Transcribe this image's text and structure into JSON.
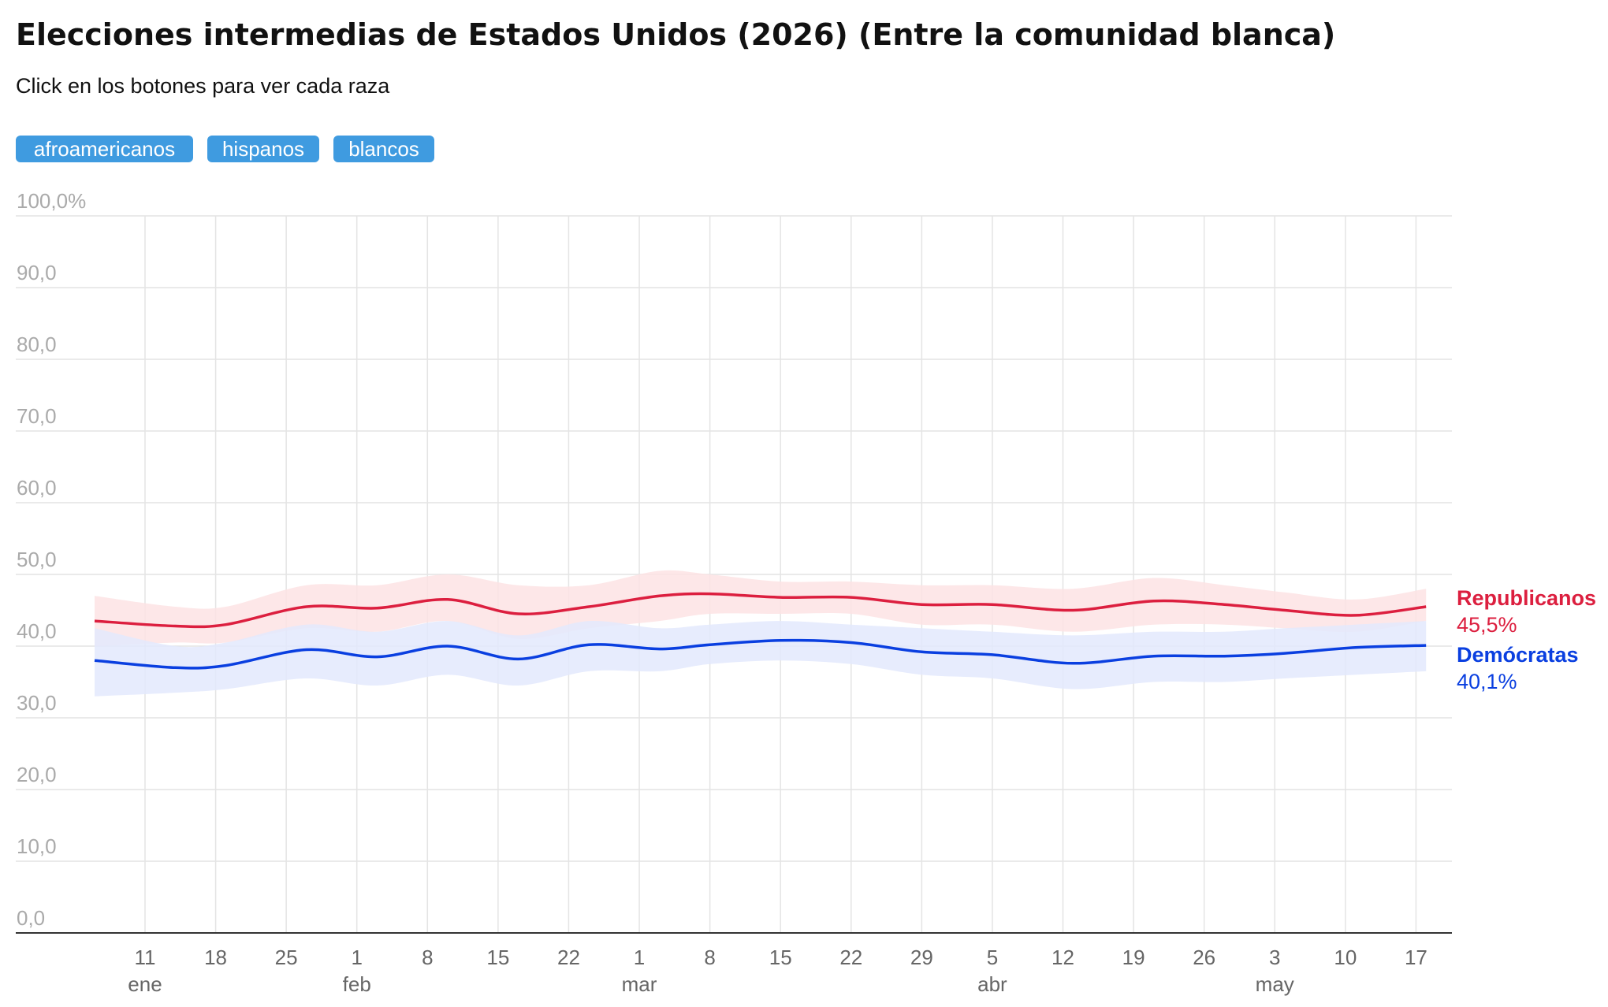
{
  "header": {
    "title": "Elecciones intermedias de Estados Unidos (2026) (Entre la comunidad blanca)",
    "subtitle": "Click en los botones para ver cada raza"
  },
  "buttons": {
    "afroamericanos": "afroamericanos",
    "hispanos": "hispanos",
    "blancos": "blancos"
  },
  "colors": {
    "republicanos": "#dc1f3f",
    "republicanos_band": "#fde3e4",
    "democratas": "#0a3fe0",
    "democratas_band": "#e3e9fd",
    "button": "#3f9be0",
    "grid": "#e4e4e4",
    "axis_text": "#aaaaaa",
    "tick_text": "#666666"
  },
  "chart_data": {
    "type": "line",
    "ylim": [
      0,
      100
    ],
    "y_ticks": [
      {
        "value": 100,
        "label": "100,0%"
      },
      {
        "value": 90,
        "label": "90,0"
      },
      {
        "value": 80,
        "label": "80,0"
      },
      {
        "value": 70,
        "label": "70,0"
      },
      {
        "value": 60,
        "label": "60,0"
      },
      {
        "value": 50,
        "label": "50,0"
      },
      {
        "value": 40,
        "label": "40,0"
      },
      {
        "value": 30,
        "label": "30,0"
      },
      {
        "value": 20,
        "label": "20,0"
      },
      {
        "value": 10,
        "label": "10,0"
      },
      {
        "value": 0,
        "label": "0,0"
      }
    ],
    "xlim": [
      "2026-01-06",
      "2026-05-19"
    ],
    "x_ticks": [
      {
        "date": "2026-01-11",
        "label": "11"
      },
      {
        "date": "2026-01-18",
        "label": "18"
      },
      {
        "date": "2026-01-25",
        "label": "25"
      },
      {
        "date": "2026-02-01",
        "label": "1"
      },
      {
        "date": "2026-02-08",
        "label": "8"
      },
      {
        "date": "2026-02-15",
        "label": "15"
      },
      {
        "date": "2026-02-22",
        "label": "22"
      },
      {
        "date": "2026-03-01",
        "label": "1"
      },
      {
        "date": "2026-03-08",
        "label": "8"
      },
      {
        "date": "2026-03-15",
        "label": "15"
      },
      {
        "date": "2026-03-22",
        "label": "22"
      },
      {
        "date": "2026-03-29",
        "label": "29"
      },
      {
        "date": "2026-04-05",
        "label": "5"
      },
      {
        "date": "2026-04-12",
        "label": "12"
      },
      {
        "date": "2026-04-19",
        "label": "19"
      },
      {
        "date": "2026-04-26",
        "label": "26"
      },
      {
        "date": "2026-05-03",
        "label": "3"
      },
      {
        "date": "2026-05-10",
        "label": "10"
      },
      {
        "date": "2026-05-17",
        "label": "17"
      }
    ],
    "month_labels": [
      {
        "date": "2026-01-11",
        "label": "ene"
      },
      {
        "date": "2026-02-01",
        "label": "feb"
      },
      {
        "date": "2026-03-01",
        "label": "mar"
      },
      {
        "date": "2026-04-05",
        "label": "abr"
      },
      {
        "date": "2026-05-03",
        "label": "may"
      }
    ],
    "grid": true,
    "series": [
      {
        "name": "Republicanos",
        "end_label": "45,5%",
        "points": [
          {
            "x": "2026-01-06",
            "y": 43.5,
            "lo": 40.0,
            "hi": 47.0
          },
          {
            "x": "2026-01-14",
            "y": 42.8,
            "lo": 40.5,
            "hi": 45.5
          },
          {
            "x": "2026-01-19",
            "y": 43.0,
            "lo": 40.5,
            "hi": 45.5
          },
          {
            "x": "2026-01-27",
            "y": 45.5,
            "lo": 42.5,
            "hi": 48.5
          },
          {
            "x": "2026-02-03",
            "y": 45.3,
            "lo": 42.0,
            "hi": 48.5
          },
          {
            "x": "2026-02-10",
            "y": 46.5,
            "lo": 43.5,
            "hi": 50.0
          },
          {
            "x": "2026-02-17",
            "y": 44.5,
            "lo": 41.0,
            "hi": 48.5
          },
          {
            "x": "2026-02-24",
            "y": 45.5,
            "lo": 42.5,
            "hi": 48.5
          },
          {
            "x": "2026-03-03",
            "y": 47.0,
            "lo": 43.5,
            "hi": 50.5
          },
          {
            "x": "2026-03-08",
            "y": 47.3,
            "lo": 44.5,
            "hi": 50.0
          },
          {
            "x": "2026-03-15",
            "y": 46.8,
            "lo": 44.5,
            "hi": 49.0
          },
          {
            "x": "2026-03-22",
            "y": 46.8,
            "lo": 44.5,
            "hi": 49.0
          },
          {
            "x": "2026-03-29",
            "y": 45.8,
            "lo": 43.0,
            "hi": 48.5
          },
          {
            "x": "2026-04-05",
            "y": 45.8,
            "lo": 43.0,
            "hi": 48.5
          },
          {
            "x": "2026-04-13",
            "y": 45.0,
            "lo": 42.0,
            "hi": 48.0
          },
          {
            "x": "2026-04-21",
            "y": 46.3,
            "lo": 43.0,
            "hi": 49.5
          },
          {
            "x": "2026-04-28",
            "y": 45.8,
            "lo": 43.0,
            "hi": 48.5
          },
          {
            "x": "2026-05-04",
            "y": 45.0,
            "lo": 42.5,
            "hi": 47.5
          },
          {
            "x": "2026-05-11",
            "y": 44.3,
            "lo": 42.0,
            "hi": 46.5
          },
          {
            "x": "2026-05-18",
            "y": 45.5,
            "lo": 43.5,
            "hi": 48.0
          }
        ]
      },
      {
        "name": "Demócratas",
        "end_label": "40,1%",
        "points": [
          {
            "x": "2026-01-06",
            "y": 38.0,
            "lo": 33.0,
            "hi": 42.5
          },
          {
            "x": "2026-01-14",
            "y": 37.0,
            "lo": 33.5,
            "hi": 40.0
          },
          {
            "x": "2026-01-19",
            "y": 37.3,
            "lo": 34.0,
            "hi": 40.5
          },
          {
            "x": "2026-01-27",
            "y": 39.5,
            "lo": 35.5,
            "hi": 43.0
          },
          {
            "x": "2026-02-03",
            "y": 38.5,
            "lo": 34.5,
            "hi": 42.0
          },
          {
            "x": "2026-02-10",
            "y": 40.0,
            "lo": 36.0,
            "hi": 43.5
          },
          {
            "x": "2026-02-17",
            "y": 38.2,
            "lo": 34.5,
            "hi": 41.5
          },
          {
            "x": "2026-02-24",
            "y": 40.2,
            "lo": 36.5,
            "hi": 43.5
          },
          {
            "x": "2026-03-03",
            "y": 39.6,
            "lo": 36.5,
            "hi": 42.5
          },
          {
            "x": "2026-03-08",
            "y": 40.2,
            "lo": 37.5,
            "hi": 43.0
          },
          {
            "x": "2026-03-15",
            "y": 40.8,
            "lo": 38.0,
            "hi": 43.5
          },
          {
            "x": "2026-03-22",
            "y": 40.5,
            "lo": 37.5,
            "hi": 43.0
          },
          {
            "x": "2026-03-29",
            "y": 39.2,
            "lo": 36.0,
            "hi": 42.5
          },
          {
            "x": "2026-04-05",
            "y": 38.8,
            "lo": 35.5,
            "hi": 42.0
          },
          {
            "x": "2026-04-13",
            "y": 37.6,
            "lo": 34.0,
            "hi": 41.5
          },
          {
            "x": "2026-04-21",
            "y": 38.6,
            "lo": 35.0,
            "hi": 42.0
          },
          {
            "x": "2026-04-28",
            "y": 38.6,
            "lo": 35.0,
            "hi": 42.0
          },
          {
            "x": "2026-05-04",
            "y": 39.0,
            "lo": 35.5,
            "hi": 42.5
          },
          {
            "x": "2026-05-11",
            "y": 39.8,
            "lo": 36.0,
            "hi": 43.0
          },
          {
            "x": "2026-05-18",
            "y": 40.1,
            "lo": 36.5,
            "hi": 43.5
          }
        ]
      }
    ]
  }
}
